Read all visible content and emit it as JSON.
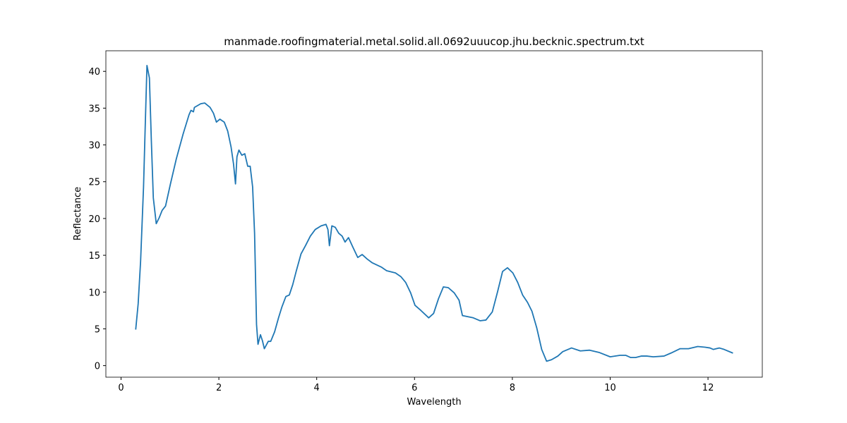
{
  "chart_data": {
    "type": "line",
    "title": "manmade.roofingmaterial.metal.solid.all.0692uuucop.jhu.becknic.spectrum.txt",
    "x_label": "Wavelength",
    "y_label": "Reflectance",
    "x": [
      0.3,
      0.35,
      0.4,
      0.46,
      0.49,
      0.53,
      0.58,
      0.62,
      0.66,
      0.72,
      0.78,
      0.84,
      0.91,
      1.01,
      1.13,
      1.27,
      1.39,
      1.43,
      1.48,
      1.5,
      1.63,
      1.71,
      1.82,
      1.89,
      1.95,
      2.02,
      2.11,
      2.18,
      2.25,
      2.3,
      2.34,
      2.37,
      2.41,
      2.47,
      2.53,
      2.59,
      2.64,
      2.69,
      2.73,
      2.77,
      2.8,
      2.85,
      2.89,
      2.93,
      3.01,
      3.06,
      3.14,
      3.22,
      3.29,
      3.37,
      3.44,
      3.51,
      3.58,
      3.68,
      3.77,
      3.87,
      3.97,
      4.09,
      4.19,
      4.23,
      4.26,
      4.31,
      4.38,
      4.45,
      4.52,
      4.58,
      4.65,
      4.74,
      4.84,
      4.93,
      5.03,
      5.13,
      5.32,
      5.43,
      5.61,
      5.72,
      5.82,
      5.92,
      6.01,
      6.13,
      6.29,
      6.39,
      6.49,
      6.59,
      6.69,
      6.81,
      6.91,
      6.98,
      7.2,
      7.34,
      7.46,
      7.59,
      7.7,
      7.8,
      7.9,
      8.01,
      8.11,
      8.21,
      8.31,
      8.4,
      8.5,
      8.6,
      8.7,
      8.8,
      8.93,
      9.03,
      9.21,
      9.39,
      9.58,
      9.77,
      10.0,
      10.2,
      10.32,
      10.42,
      10.52,
      10.64,
      10.75,
      10.88,
      11.1,
      11.24,
      11.43,
      11.6,
      11.79,
      11.94,
      12.04,
      12.11,
      12.23,
      12.33,
      12.51
    ],
    "series": [
      {
        "color": "#1f77b4",
        "values": [
          4.9,
          8.4,
          14.2,
          24.3,
          31.5,
          40.8,
          39.1,
          30.5,
          22.8,
          19.3,
          20.1,
          21.1,
          21.7,
          24.7,
          28.1,
          31.5,
          34.1,
          34.7,
          34.5,
          35.1,
          35.6,
          35.7,
          35.1,
          34.3,
          33.1,
          33.5,
          33.1,
          31.9,
          29.7,
          27.4,
          24.7,
          28.4,
          29.3,
          28.6,
          28.8,
          27.1,
          27.1,
          24.3,
          18.0,
          5.6,
          2.9,
          4.2,
          3.4,
          2.3,
          3.3,
          3.3,
          4.6,
          6.5,
          8.0,
          9.4,
          9.6,
          11.0,
          12.8,
          15.2,
          16.3,
          17.6,
          18.5,
          19.0,
          19.2,
          18.5,
          16.3,
          19.0,
          18.8,
          18.0,
          17.6,
          16.8,
          17.4,
          16.1,
          14.7,
          15.1,
          14.5,
          14.0,
          13.4,
          12.9,
          12.6,
          12.1,
          11.3,
          9.9,
          8.2,
          7.5,
          6.5,
          7.1,
          9.1,
          10.7,
          10.6,
          9.9,
          8.9,
          6.8,
          6.5,
          6.1,
          6.2,
          7.3,
          10.1,
          12.8,
          13.3,
          12.6,
          11.3,
          9.6,
          8.6,
          7.4,
          5.1,
          2.2,
          0.6,
          0.8,
          1.3,
          1.9,
          2.4,
          2.0,
          2.1,
          1.8,
          1.2,
          1.4,
          1.4,
          1.1,
          1.1,
          1.3,
          1.3,
          1.2,
          1.3,
          1.7,
          2.3,
          2.3,
          2.6,
          2.5,
          2.4,
          2.2,
          2.4,
          2.2,
          1.7
        ]
      }
    ],
    "xlim": [
      -0.31,
      13.11
    ],
    "ylim": [
      -1.57,
      42.8
    ],
    "xticks": [
      0,
      2,
      4,
      6,
      8,
      10,
      12
    ],
    "yticks": [
      0,
      5,
      10,
      15,
      20,
      25,
      30,
      35,
      40
    ]
  }
}
